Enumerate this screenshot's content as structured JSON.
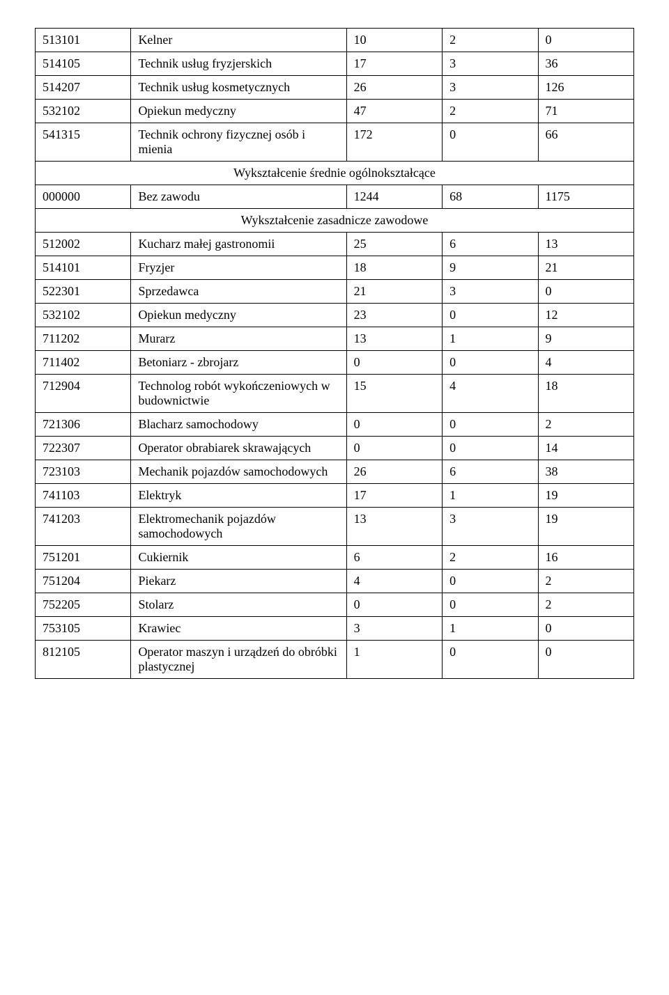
{
  "table": {
    "columns": {
      "code_width": "16%",
      "name_width": "36%",
      "v1_width": "16%",
      "v2_width": "16%",
      "v3_width": "16%"
    },
    "border_color": "#000000",
    "background_color": "#ffffff",
    "font_family": "Times New Roman",
    "font_size": 18,
    "text_color": "#000000",
    "sections": [
      {
        "rows": [
          {
            "code": "513101",
            "name": "Kelner",
            "v1": "10",
            "v2": "2",
            "v3": "0"
          },
          {
            "code": "514105",
            "name": "Technik usług fryzjerskich",
            "v1": "17",
            "v2": "3",
            "v3": "36"
          },
          {
            "code": "514207",
            "name": "Technik usług kosmetycznych",
            "v1": "26",
            "v2": "3",
            "v3": "126"
          },
          {
            "code": "532102",
            "name": "Opiekun medyczny",
            "v1": "47",
            "v2": "2",
            "v3": "71"
          },
          {
            "code": "541315",
            "name": "Technik ochrony fizycznej osób i mienia",
            "v1": "172",
            "v2": "0",
            "v3": "66"
          }
        ]
      },
      {
        "header": "Wykształcenie średnie ogólnokształcące",
        "rows": [
          {
            "code": "000000",
            "name": "Bez zawodu",
            "v1": "1244",
            "v2": "68",
            "v3": "1175"
          }
        ]
      },
      {
        "header": "Wykształcenie zasadnicze zawodowe",
        "rows": [
          {
            "code": "512002",
            "name": "Kucharz małej gastronomii",
            "v1": "25",
            "v2": "6",
            "v3": "13"
          },
          {
            "code": "514101",
            "name": "Fryzjer",
            "v1": "18",
            "v2": "9",
            "v3": "21"
          },
          {
            "code": "522301",
            "name": "Sprzedawca",
            "v1": "21",
            "v2": "3",
            "v3": "0"
          },
          {
            "code": "532102",
            "name": "Opiekun medyczny",
            "v1": "23",
            "v2": "0",
            "v3": "12"
          },
          {
            "code": "711202",
            "name": "Murarz",
            "v1": "13",
            "v2": "1",
            "v3": "9"
          },
          {
            "code": "711402",
            "name": "Betoniarz - zbrojarz",
            "v1": "0",
            "v2": "0",
            "v3": "4"
          },
          {
            "code": "712904",
            "name": "Technolog robót wykończeniowych w budownictwie",
            "v1": "15",
            "v2": "4",
            "v3": "18"
          },
          {
            "code": "721306",
            "name": "Blacharz samochodowy",
            "v1": "0",
            "v2": "0",
            "v3": "2"
          },
          {
            "code": "722307",
            "name": "Operator obrabiarek skrawających",
            "v1": "0",
            "v2": "0",
            "v3": "14"
          },
          {
            "code": "723103",
            "name": "Mechanik pojazdów samochodowych",
            "v1": "26",
            "v2": "6",
            "v3": "38"
          },
          {
            "code": "741103",
            "name": "Elektryk",
            "v1": "17",
            "v2": "1",
            "v3": "19"
          },
          {
            "code": "741203",
            "name": "Elektromechanik pojazdów samochodowych",
            "v1": "13",
            "v2": "3",
            "v3": "19"
          },
          {
            "code": "751201",
            "name": "Cukiernik",
            "v1": "6",
            "v2": "2",
            "v3": "16"
          },
          {
            "code": "751204",
            "name": "Piekarz",
            "v1": "4",
            "v2": "0",
            "v3": "2"
          },
          {
            "code": "752205",
            "name": "Stolarz",
            "v1": "0",
            "v2": "0",
            "v3": "2"
          },
          {
            "code": "753105",
            "name": "Krawiec",
            "v1": "3",
            "v2": "1",
            "v3": "0"
          },
          {
            "code": "812105",
            "name": "Operator maszyn i urządzeń do obróbki plastycznej",
            "v1": "1",
            "v2": "0",
            "v3": "0"
          }
        ]
      }
    ]
  }
}
